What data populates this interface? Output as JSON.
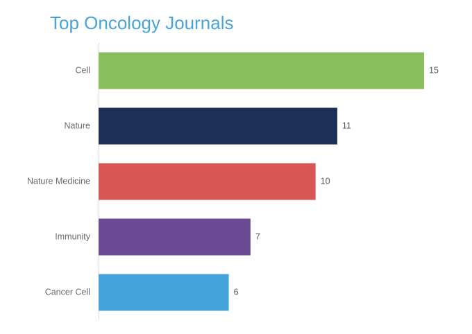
{
  "chart_data": {
    "type": "bar",
    "orientation": "horizontal",
    "title": "Top Oncology Journals",
    "xlabel": "",
    "ylabel": "",
    "categories": [
      "Cell",
      "Nature",
      "Nature Medicine",
      "Immunity",
      "Cancer Cell"
    ],
    "values": [
      15,
      11,
      10,
      7,
      6
    ],
    "colors": [
      "#88be5c",
      "#1c2f57",
      "#d95656",
      "#6b4a94",
      "#45a3dc"
    ],
    "xlim": [
      0,
      15
    ],
    "grid": false,
    "legend": "none",
    "data_labels": true
  }
}
